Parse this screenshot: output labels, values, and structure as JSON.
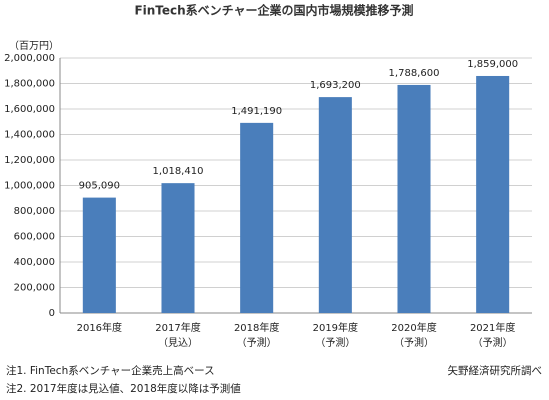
{
  "chart_data": {
    "type": "bar",
    "title": "FinTech系ベンチャー企業の国内市場規模推移予測",
    "y_unit": "（百万円）",
    "categories": [
      "2016年度",
      "2017年度",
      "2018年度",
      "2019年度",
      "2020年度",
      "2021年度"
    ],
    "category_notes": [
      null,
      "（見込）",
      "（予測）",
      "（予測）",
      "（予測）",
      "（予測）"
    ],
    "values": [
      905090,
      1018410,
      1491190,
      1693200,
      1788600,
      1859000
    ],
    "value_labels": [
      "905,090",
      "1,018,410",
      "1,491,190",
      "1,693,200",
      "1,788,600",
      "1,859,000"
    ],
    "color": "#4a7ebb",
    "ylim": [
      0,
      2000000
    ],
    "yticks": [
      0,
      {
        "value": 200000,
        "label": "200,000"
      },
      {
        "value": 400000,
        "label": "400,000"
      },
      {
        "value": 600000,
        "label": "600,000"
      },
      {
        "value": 800000,
        "label": "800,000"
      },
      {
        "value": 1000000,
        "label": "1,000,000"
      },
      {
        "value": 1200000,
        "label": "1,200,000"
      },
      {
        "value": 1400000,
        "label": "1,400,000"
      },
      {
        "value": 1600000,
        "label": "1,600,000"
      },
      {
        "value": 1800000,
        "label": "1,800,000"
      },
      {
        "value": 2000000,
        "label": "2,000,000"
      }
    ],
    "grid": true,
    "notes": [
      "注1. FinTech系ベンチャー企業売上高ベース",
      "注2. 2017年度は見込値、2018年度以降は予測値"
    ],
    "source": "矢野経済研究所調べ"
  }
}
